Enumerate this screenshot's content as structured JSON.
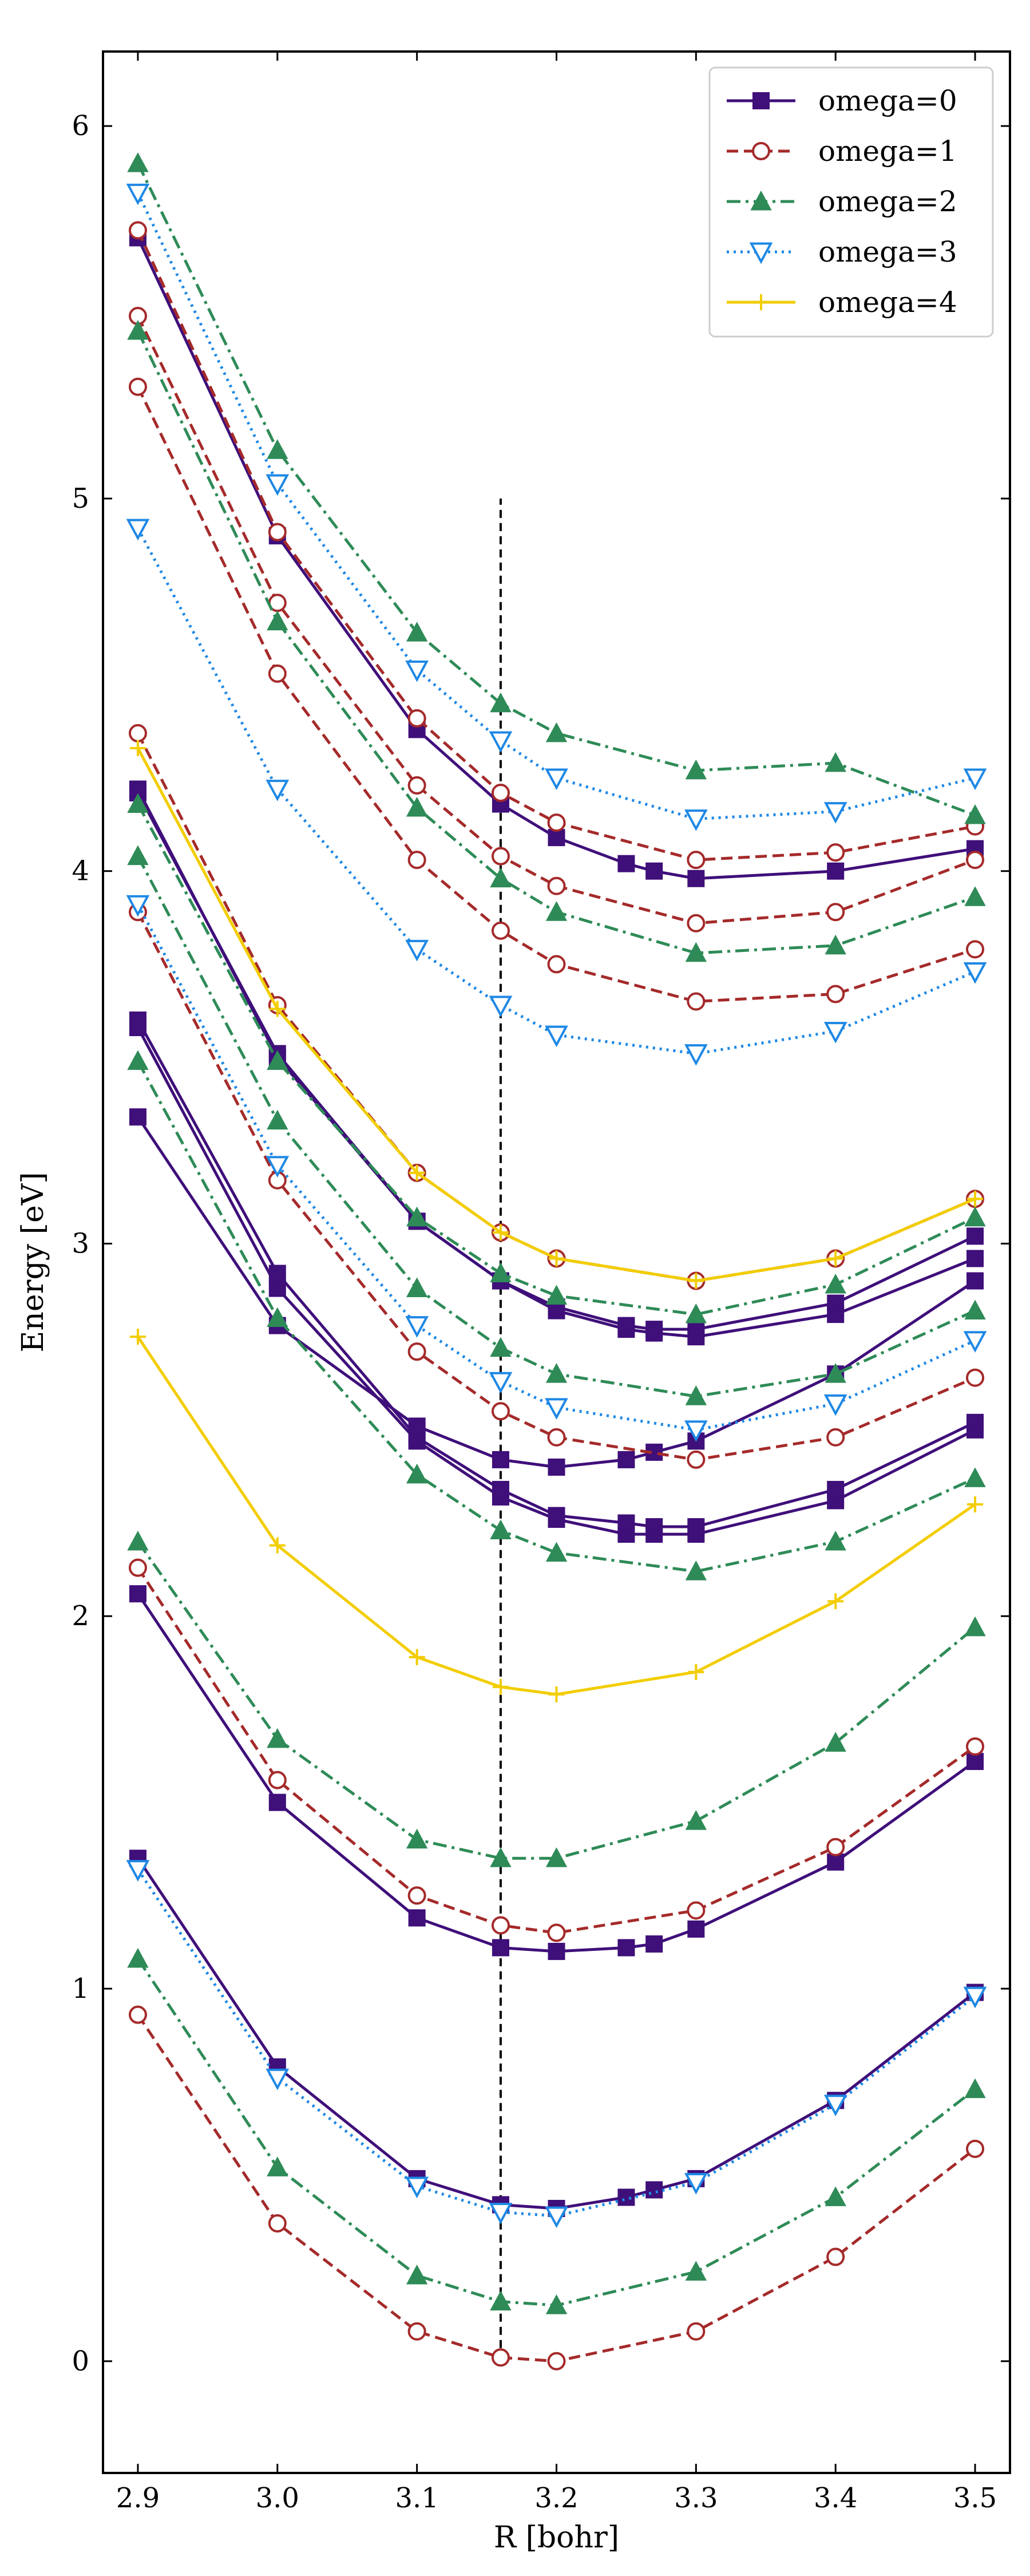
{
  "chart_data": {
    "type": "line",
    "title": "",
    "xlabel": "R [bohr]",
    "ylabel": "Energy [eV]",
    "xlim": [
      2.875,
      3.525
    ],
    "ylim": [
      -0.3,
      6.2
    ],
    "x_ticks": [
      2.9,
      3.0,
      3.1,
      3.2,
      3.3,
      3.4,
      3.5
    ],
    "x_tick_labels": [
      "2.9",
      "3.0",
      "3.1",
      "3.2",
      "3.3",
      "3.4",
      "3.5"
    ],
    "y_ticks": [
      0,
      1,
      2,
      3,
      4,
      5,
      6
    ],
    "y_tick_labels": [
      "0",
      "1",
      "2",
      "3",
      "4",
      "5",
      "6"
    ],
    "reference_line": {
      "x": 3.16,
      "y_range": [
        0,
        5.0
      ],
      "style": "dashed",
      "color": "#000000"
    },
    "legend_position": "top-right",
    "series": [
      {
        "name": "omega=0",
        "color": "#3f0f7a",
        "linestyle": "solid",
        "marker": "square",
        "curves": [
          {
            "x": [
              2.9,
              3.0,
              3.1,
              3.16,
              3.2,
              3.25,
              3.27,
              3.3,
              3.4,
              3.5
            ],
            "y": [
              1.35,
              0.79,
              0.49,
              0.42,
              0.41,
              0.44,
              0.46,
              0.49,
              0.7,
              0.99
            ]
          },
          {
            "x": [
              2.9,
              3.0,
              3.1,
              3.16,
              3.2,
              3.25,
              3.27,
              3.3,
              3.4,
              3.5
            ],
            "y": [
              2.06,
              1.5,
              1.19,
              1.11,
              1.1,
              1.11,
              1.12,
              1.16,
              1.34,
              1.61
            ]
          },
          {
            "x": [
              2.9,
              3.0,
              3.1,
              3.16,
              3.2,
              3.25,
              3.27,
              3.3,
              3.4,
              3.5
            ],
            "y": [
              3.58,
              2.88,
              2.47,
              2.32,
              2.26,
              2.22,
              2.22,
              2.22,
              2.31,
              2.5
            ]
          },
          {
            "x": [
              2.9,
              3.0,
              3.1,
              3.16,
              3.2,
              3.25,
              3.27,
              3.3,
              3.4,
              3.5
            ],
            "y": [
              3.6,
              2.92,
              2.48,
              2.34,
              2.27,
              2.25,
              2.24,
              2.24,
              2.34,
              2.52
            ]
          },
          {
            "x": [
              2.9,
              3.0,
              3.1,
              3.16,
              3.2,
              3.25,
              3.27,
              3.3,
              3.4,
              3.5
            ],
            "y": [
              3.34,
              2.78,
              2.51,
              2.42,
              2.4,
              2.42,
              2.44,
              2.47,
              2.65,
              2.9
            ]
          },
          {
            "x": [
              2.9,
              3.0,
              3.1,
              3.16,
              3.2,
              3.25,
              3.27,
              3.3,
              3.4,
              3.5
            ],
            "y": [
              4.21,
              3.51,
              3.06,
              2.9,
              2.82,
              2.77,
              2.76,
              2.75,
              2.81,
              2.96
            ]
          },
          {
            "x": [
              2.9,
              3.0,
              3.1,
              3.16,
              3.2,
              3.25,
              3.27,
              3.3,
              3.4,
              3.5
            ],
            "y": [
              4.22,
              3.5,
              3.06,
              2.9,
              2.83,
              2.78,
              2.77,
              2.77,
              2.84,
              3.02
            ]
          },
          {
            "x": [
              2.9,
              3.0,
              3.1,
              3.16,
              3.2,
              3.25,
              3.27,
              3.3,
              3.4,
              3.5
            ],
            "y": [
              5.7,
              4.9,
              4.38,
              4.18,
              4.09,
              4.02,
              4.0,
              3.98,
              4.0,
              4.06
            ]
          }
        ]
      },
      {
        "name": "omega=1",
        "color": "#a52a2a",
        "linestyle": "dashed",
        "marker": "circle",
        "curves": [
          {
            "x": [
              2.9,
              3.0,
              3.1,
              3.16,
              3.2,
              3.3,
              3.4,
              3.5
            ],
            "y": [
              0.93,
              0.37,
              0.08,
              0.01,
              0.0,
              0.08,
              0.28,
              0.57
            ]
          },
          {
            "x": [
              2.9,
              3.0,
              3.1,
              3.16,
              3.2,
              3.3,
              3.4,
              3.5
            ],
            "y": [
              2.13,
              1.56,
              1.25,
              1.17,
              1.15,
              1.21,
              1.38,
              1.65
            ]
          },
          {
            "x": [
              2.9,
              3.0,
              3.1,
              3.16,
              3.2,
              3.3,
              3.4,
              3.5
            ],
            "y": [
              3.89,
              3.17,
              2.71,
              2.55,
              2.48,
              2.42,
              2.48,
              2.64
            ]
          },
          {
            "x": [
              2.9,
              3.0,
              3.1,
              3.16,
              3.2,
              3.3,
              3.4,
              3.5
            ],
            "y": [
              4.37,
              3.64,
              3.19,
              3.03,
              2.96,
              2.9,
              2.96,
              3.12
            ]
          },
          {
            "x": [
              2.9,
              3.0,
              3.1,
              3.16,
              3.2,
              3.3,
              3.4,
              3.5
            ],
            "y": [
              5.3,
              4.53,
              4.03,
              3.84,
              3.75,
              3.65,
              3.67,
              3.79
            ]
          },
          {
            "x": [
              2.9,
              3.0,
              3.1,
              3.16,
              3.2,
              3.3,
              3.4,
              3.5
            ],
            "y": [
              5.49,
              4.72,
              4.23,
              4.04,
              3.96,
              3.86,
              3.89,
              4.03
            ]
          },
          {
            "x": [
              2.9,
              3.0,
              3.1,
              3.16,
              3.2,
              3.3,
              3.4,
              3.5
            ],
            "y": [
              5.72,
              4.91,
              4.41,
              4.21,
              4.13,
              4.03,
              4.05,
              4.12
            ]
          }
        ]
      },
      {
        "name": "omega=2",
        "color": "#2e8b57",
        "linestyle": "dashdot",
        "marker": "triangle-up",
        "curves": [
          {
            "x": [
              2.9,
              3.0,
              3.1,
              3.16,
              3.2,
              3.3,
              3.4,
              3.5
            ],
            "y": [
              1.08,
              0.52,
              0.23,
              0.16,
              0.15,
              0.24,
              0.44,
              0.73
            ]
          },
          {
            "x": [
              2.9,
              3.0,
              3.1,
              3.16,
              3.2,
              3.3,
              3.4,
              3.5
            ],
            "y": [
              2.2,
              1.67,
              1.4,
              1.35,
              1.35,
              1.45,
              1.66,
              1.97
            ]
          },
          {
            "x": [
              2.9,
              3.0,
              3.1,
              3.16,
              3.2,
              3.3,
              3.4,
              3.5
            ],
            "y": [
              3.49,
              2.8,
              2.38,
              2.23,
              2.17,
              2.12,
              2.2,
              2.37
            ]
          },
          {
            "x": [
              2.9,
              3.0,
              3.1,
              3.16,
              3.2,
              3.3,
              3.4,
              3.5
            ],
            "y": [
              4.04,
              3.33,
              2.88,
              2.72,
              2.65,
              2.59,
              2.65,
              2.82
            ]
          },
          {
            "x": [
              2.9,
              3.0,
              3.1,
              3.16,
              3.2,
              3.3,
              3.4,
              3.5
            ],
            "y": [
              4.18,
              3.49,
              3.07,
              2.92,
              2.86,
              2.81,
              2.89,
              3.07
            ]
          },
          {
            "x": [
              2.9,
              3.0,
              3.1,
              3.16,
              3.2,
              3.3,
              3.4,
              3.5
            ],
            "y": [
              5.45,
              4.67,
              4.17,
              3.98,
              3.89,
              3.78,
              3.8,
              3.93
            ]
          },
          {
            "x": [
              2.9,
              3.0,
              3.1,
              3.16,
              3.2,
              3.3,
              3.4,
              3.5
            ],
            "y": [
              5.9,
              5.13,
              4.64,
              4.45,
              4.37,
              4.27,
              4.29,
              4.15
            ]
          }
        ]
      },
      {
        "name": "omega=3",
        "color": "#1e88e5",
        "linestyle": "dotted",
        "marker": "triangle-down-open",
        "curves": [
          {
            "x": [
              2.9,
              3.0,
              3.1,
              3.16,
              3.2,
              3.3,
              3.4,
              3.5
            ],
            "y": [
              1.32,
              0.76,
              0.47,
              0.4,
              0.39,
              0.48,
              0.69,
              0.98
            ]
          },
          {
            "x": [
              2.9,
              3.0,
              3.1,
              3.16,
              3.2,
              3.3,
              3.4,
              3.5
            ],
            "y": [
              3.91,
              3.21,
              2.78,
              2.63,
              2.56,
              2.5,
              2.57,
              2.74
            ]
          },
          {
            "x": [
              2.9,
              3.0,
              3.1,
              3.16,
              3.2,
              3.3,
              3.4,
              3.5
            ],
            "y": [
              4.92,
              4.22,
              3.79,
              3.64,
              3.56,
              3.51,
              3.57,
              3.73
            ]
          },
          {
            "x": [
              2.9,
              3.0,
              3.1,
              3.16,
              3.2,
              3.3,
              3.4,
              3.5
            ],
            "y": [
              5.82,
              5.04,
              4.54,
              4.35,
              4.25,
              4.14,
              4.16,
              4.25
            ]
          }
        ]
      },
      {
        "name": "omega=4",
        "color": "#f2cd00",
        "linestyle": "solid",
        "marker": "plus",
        "curves": [
          {
            "x": [
              2.9,
              3.0,
              3.1,
              3.16,
              3.2,
              3.3,
              3.4,
              3.5
            ],
            "y": [
              2.75,
              2.19,
              1.89,
              1.81,
              1.79,
              1.85,
              2.04,
              2.3
            ]
          },
          {
            "x": [
              2.9,
              3.0,
              3.1,
              3.16,
              3.2,
              3.3,
              3.4,
              3.5
            ],
            "y": [
              4.33,
              3.63,
              3.19,
              3.03,
              2.96,
              2.9,
              2.96,
              3.12
            ]
          }
        ]
      }
    ]
  }
}
